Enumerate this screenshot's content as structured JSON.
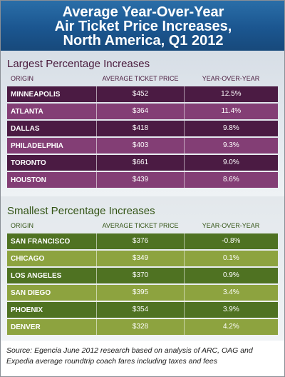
{
  "title": {
    "line1": "Average Year-Over-Year",
    "line2": "Air Ticket Price Increases,",
    "line3": "North America, Q1 2012"
  },
  "largest": {
    "heading": "Largest Percentage Increases",
    "columns": [
      "ORIGIN",
      "AVERAGE TICKET PRICE",
      "YEAR-OVER-YEAR"
    ],
    "rows": [
      {
        "origin": "MINNEAPOLIS",
        "price": "$452",
        "yoy": "12.5%"
      },
      {
        "origin": "ATLANTA",
        "price": "$364",
        "yoy": "11.4%"
      },
      {
        "origin": "DALLAS",
        "price": "$418",
        "yoy": "9.8%"
      },
      {
        "origin": "PHILADELPHIA",
        "price": "$403",
        "yoy": "9.3%"
      },
      {
        "origin": "TORONTO",
        "price": "$661",
        "yoy": "9.0%"
      },
      {
        "origin": "HOUSTON",
        "price": "$439",
        "yoy": "8.6%"
      }
    ]
  },
  "smallest": {
    "heading": "Smallest Percentage Increases",
    "columns": [
      "ORIGIN",
      "AVERAGE TICKET PRICE",
      "YEAR-OVER-YEAR"
    ],
    "rows": [
      {
        "origin": "SAN FRANCISCO",
        "price": "$376",
        "yoy": "-0.8%"
      },
      {
        "origin": "CHICAGO",
        "price": "$349",
        "yoy": "0.1%"
      },
      {
        "origin": "LOS ANGELES",
        "price": "$370",
        "yoy": "0.9%"
      },
      {
        "origin": "SAN DIEGO",
        "price": "$395",
        "yoy": "3.4%"
      },
      {
        "origin": "PHOENIX",
        "price": "$354",
        "yoy": "3.9%"
      },
      {
        "origin": "DENVER",
        "price": "$328",
        "yoy": "4.2%"
      }
    ]
  },
  "source": {
    "line1": "Source: Egencia June 2012 research based on analysis of ARC, OAG and",
    "line2": "Expedia average roundtrip coach fares including taxes and fees"
  },
  "colors": {
    "title_band": "#1b5690",
    "purple_dark": "#4b1b43",
    "purple_light": "#833e75",
    "green_dark": "#4f7222",
    "green_light": "#8da33f"
  }
}
